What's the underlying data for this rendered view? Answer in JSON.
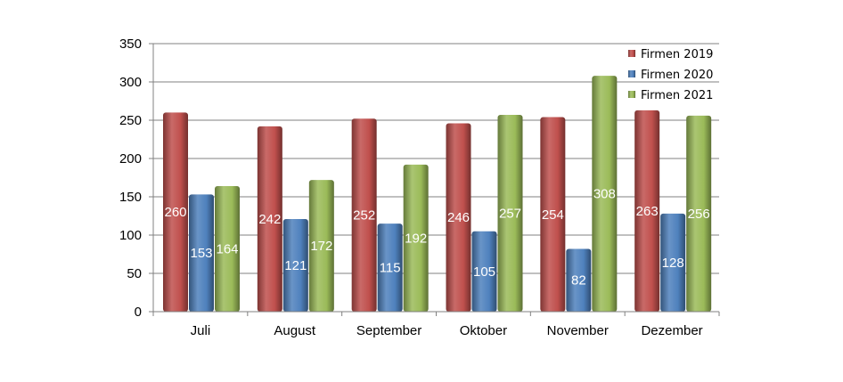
{
  "chart_data": {
    "type": "bar",
    "categories": [
      "Juli",
      "August",
      "September",
      "Oktober",
      "November",
      "Dezember"
    ],
    "series": [
      {
        "name": "Firmen 2019",
        "color": "#c0504d",
        "values": [
          260,
          242,
          252,
          246,
          254,
          263
        ]
      },
      {
        "name": "Firmen 2020",
        "color": "#4f81bd",
        "values": [
          153,
          121,
          115,
          105,
          82,
          128
        ]
      },
      {
        "name": "Firmen 2021",
        "color": "#9bbb59",
        "values": [
          164,
          172,
          192,
          257,
          308,
          256
        ]
      }
    ],
    "yticks": [
      0,
      50,
      100,
      150,
      200,
      250,
      300,
      350
    ],
    "ylim": [
      0,
      350
    ],
    "grid": true,
    "legend_position": "top-right"
  }
}
